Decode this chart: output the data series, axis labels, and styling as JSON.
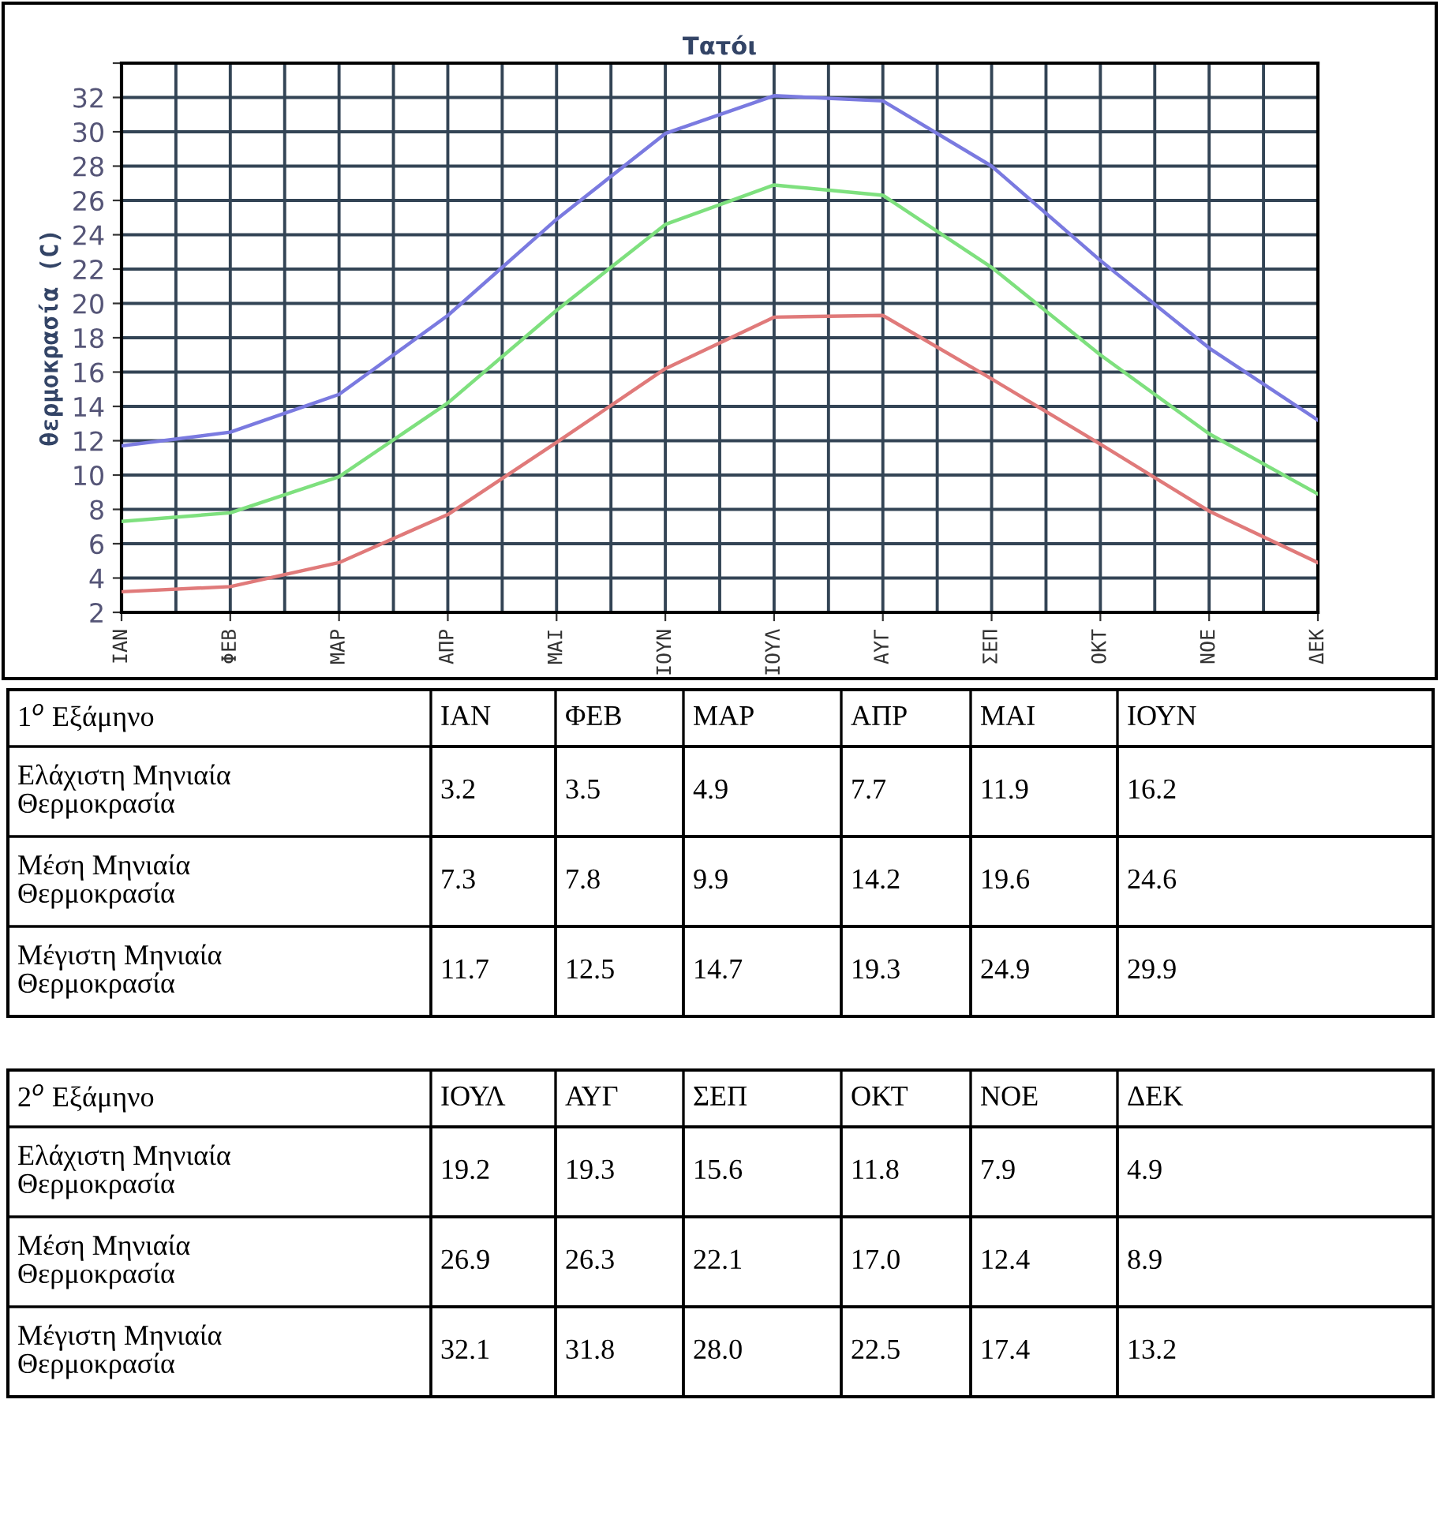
{
  "chart_data": [
    {
      "type": "line",
      "title": "Τατόι",
      "ylabel": "θερμοκρασία (C)",
      "categories": [
        "ΙΑΝ",
        "ΦΕΒ",
        "ΜΑΡ",
        "ΑΠΡ",
        "ΜΑΙ",
        "ΙΟΥΝ",
        "ΙΟΥΛ",
        "ΑΥΓ",
        "ΣΕΠ",
        "ΟΚΤ",
        "ΝΟΕ",
        "ΔΕΚ"
      ],
      "series": [
        {
          "color": "#e07a7a",
          "values": [
            3.2,
            3.5,
            4.9,
            7.7,
            11.9,
            16.2,
            19.2,
            19.3,
            15.6,
            11.8,
            7.9,
            4.9
          ]
        },
        {
          "color": "#7ee07e",
          "values": [
            7.3,
            7.8,
            9.9,
            14.2,
            19.6,
            24.6,
            26.9,
            26.3,
            22.1,
            17.0,
            12.4,
            8.9
          ]
        },
        {
          "color": "#7a7ae0",
          "values": [
            11.7,
            12.5,
            14.7,
            19.3,
            24.9,
            29.9,
            32.1,
            31.8,
            28.0,
            22.5,
            17.4,
            13.2
          ]
        }
      ],
      "ylim": [
        2,
        34
      ],
      "yticks": [
        2,
        4,
        6,
        8,
        10,
        12,
        14,
        16,
        18,
        20,
        22,
        24,
        26,
        28,
        30,
        32,
        {
          "value": 34,
          "label": null
        }
      ],
      "grid": true,
      "marker": "none",
      "line_style": "solid"
    },
    {
      "type": "heatmap",
      "title": "1$^{o}$ Εξάμηνο",
      "categories": [
        "ΙΑΝ",
        "ΦΕΒ",
        "ΜΑΡ",
        "ΑΠΡ",
        "ΜΑΙ",
        "ΙΟΥΝ"
      ],
      "y_categories": [
        "Ελάχιστη Μηνιαία Θερμοκρασία",
        "Μέση Μηνιαία Θερμοκρασία",
        "Μέγιστη Μηνιαία Θερμοκρασία"
      ],
      "cells": [
        [
          3.2,
          3.5,
          4.9,
          7.7,
          11.9,
          16.2
        ],
        [
          7.3,
          7.8,
          9.9,
          14.2,
          19.6,
          24.6
        ],
        [
          11.7,
          12.5,
          14.7,
          19.3,
          24.9,
          29.9
        ]
      ],
      "data_labels": true
    },
    {
      "type": "heatmap",
      "title": "2$^{o}$ Εξάμηνο",
      "categories": [
        "ΙΟΥΛ",
        "ΑΥΓ",
        "ΣΕΠ",
        "ΟΚΤ",
        "ΝΟΕ",
        "ΔΕΚ"
      ],
      "y_categories": [
        "Ελάχιστη Μηνιαία Θερμοκρασία",
        "Μέση Μηνιαία Θερμοκρασία",
        "Μέγιστη Μηνιαία Θερμοκρασία"
      ],
      "cells": [
        [
          19.2,
          19.3,
          15.6,
          11.8,
          7.9,
          4.9
        ],
        [
          26.9,
          26.3,
          22.1,
          17.0,
          12.4,
          8.9
        ],
        [
          32.1,
          31.8,
          28.0,
          22.5,
          17.4,
          13.2
        ]
      ],
      "cell_labels": [
        [
          "19.2",
          "19.3",
          "15.6",
          "11.8",
          "7.9",
          "4.9"
        ],
        [
          "26.9",
          "26.3",
          "22.1",
          "17.0",
          "12.4",
          "8.9"
        ],
        [
          "32.1",
          "31.8",
          "28.0",
          "22.5",
          "17.4",
          "13.2"
        ]
      ],
      "data_labels": true
    }
  ]
}
